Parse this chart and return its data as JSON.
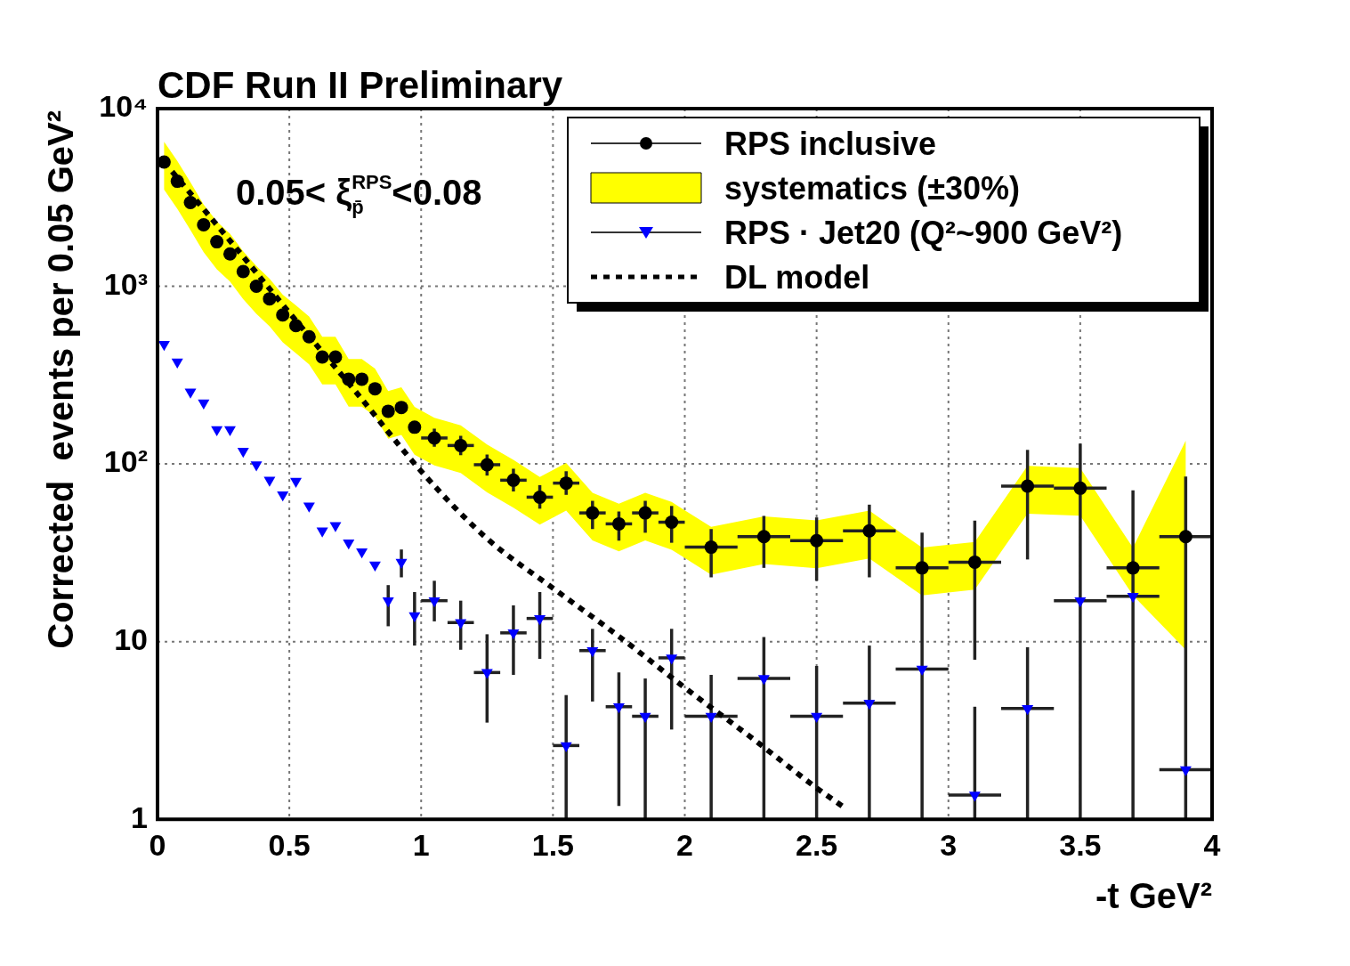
{
  "chart_data": {
    "type": "scatter",
    "title": "CDF Run II Preliminary",
    "xlabel": "-t GeV²",
    "ylabel": "Corrected  events per 0.05 GeV²",
    "annotations": [
      "0.05< ξ$^{RPS}$$_{p̄}$<0.08"
    ],
    "xlim": [
      0,
      4
    ],
    "xticks": [
      0,
      0.5,
      1,
      1.5,
      2,
      2.5,
      3,
      3.5,
      4
    ],
    "ylim": [
      1,
      10000
    ],
    "yticks": [
      1,
      10,
      {
        "value": 100,
        "label": "10²"
      },
      {
        "value": 1000,
        "label": "10³"
      },
      {
        "value": 10000,
        "label": "10⁴"
      }
    ],
    "log": "y",
    "grid": true,
    "legend": "top right",
    "series": [
      {
        "name": "RPS inclusive",
        "type": "scatter",
        "color": "#000000",
        "marker": "circle",
        "x": [
          0.025,
          0.075,
          0.125,
          0.175,
          0.225,
          0.275,
          0.325,
          0.375,
          0.425,
          0.475,
          0.525,
          0.575,
          0.625,
          0.675,
          0.725,
          0.775,
          0.825,
          0.875,
          0.925,
          0.975,
          1.05,
          1.15,
          1.25,
          1.35,
          1.45,
          1.55,
          1.65,
          1.75,
          1.85,
          1.95,
          2.1,
          2.3,
          2.5,
          2.7,
          2.9,
          3.1,
          3.3,
          3.5,
          3.7,
          3.9
        ],
        "values": [
          5000,
          3900,
          2960,
          2220,
          1780,
          1520,
          1210,
          1000,
          850,
          690,
          600,
          520,
          400,
          400,
          300,
          300,
          265,
          198,
          208,
          161,
          140,
          127,
          99,
          81,
          65,
          78,
          53,
          46,
          53,
          47,
          34,
          39,
          37,
          42,
          26,
          28,
          75,
          73,
          26,
          39
        ],
        "errors": [
          null,
          null,
          null,
          null,
          null,
          null,
          null,
          null,
          null,
          null,
          null,
          null,
          null,
          null,
          null,
          null,
          null,
          null,
          null,
          null,
          [
            125,
            158
          ],
          [
            112,
            144
          ],
          [
            86,
            113
          ],
          [
            70,
            94
          ],
          [
            56,
            76
          ],
          [
            67,
            91
          ],
          [
            43,
            62
          ],
          [
            37,
            54
          ],
          [
            41,
            62
          ],
          [
            36,
            58
          ],
          [
            23,
            43
          ],
          [
            26,
            51
          ],
          [
            22,
            50
          ],
          [
            23,
            59
          ],
          [
            1,
            41
          ],
          [
            7.9,
            48
          ],
          [
            29,
            120
          ],
          [
            1,
            130
          ],
          [
            1,
            71
          ],
          [
            1,
            85
          ]
        ],
        "xerrors": [
          null,
          null,
          null,
          null,
          null,
          null,
          null,
          null,
          null,
          null,
          null,
          null,
          null,
          null,
          null,
          null,
          null,
          null,
          null,
          null,
          0.05,
          0.05,
          0.05,
          0.05,
          0.05,
          0.05,
          0.05,
          0.05,
          0.05,
          0.05,
          0.1,
          0.1,
          0.1,
          0.1,
          0.1,
          0.1,
          0.1,
          0.1,
          0.1,
          0.1
        ],
        "lower": [
          3500,
          2730,
          2072,
          1554,
          1246,
          1064,
          847,
          700,
          595,
          483,
          420,
          364,
          280,
          280,
          210,
          210,
          185.5,
          138.6,
          145.6,
          112.7,
          98,
          88.9,
          69.3,
          56.7,
          45.5,
          54.6,
          37.1,
          32.2,
          37.1,
          32.9,
          23.8,
          27.3,
          25.9,
          29.4,
          18.2,
          19.6,
          52.5,
          51.1,
          18.2,
          9
        ],
        "upper": [
          6500,
          5070,
          3848,
          2886,
          2314,
          1976,
          1573,
          1300,
          1105,
          897,
          780,
          676,
          520,
          520,
          390,
          390,
          344.5,
          257.4,
          270.4,
          209.3,
          182,
          165.1,
          128.7,
          105.3,
          84.5,
          101.4,
          68.9,
          59.8,
          68.9,
          61.1,
          44.2,
          50.7,
          48.1,
          54.6,
          33.8,
          36.4,
          97.5,
          94.9,
          33.8,
          135
        ]
      },
      {
        "name": "systematics (±30%)",
        "type": "area",
        "color": "#ffff00"
      },
      {
        "name": "RPS · Jet20 (Q²~900 GeV²)",
        "type": "scatter",
        "color": "#0000ff",
        "marker": "triangle",
        "x": [
          0.025,
          0.075,
          0.125,
          0.175,
          0.225,
          0.275,
          0.325,
          0.375,
          0.425,
          0.475,
          0.525,
          0.575,
          0.625,
          0.675,
          0.725,
          0.775,
          0.825,
          0.875,
          0.925,
          0.975,
          1.05,
          1.15,
          1.25,
          1.35,
          1.45,
          1.55,
          1.65,
          1.75,
          1.85,
          1.95,
          2.1,
          2.3,
          2.5,
          2.7,
          2.9,
          3.1,
          3.3,
          3.5,
          3.7,
          3.9
        ],
        "values": [
          471,
          375,
          254,
          221,
          156,
          156,
          118,
          99,
          81,
          67,
          80,
          58,
          42,
          45,
          36,
          32,
          27,
          17,
          28,
          14,
          17,
          12.8,
          6.7,
          11.2,
          13.5,
          2.6,
          8.9,
          4.3,
          3.8,
          8.1,
          3.8,
          6.2,
          3.8,
          4.5,
          7.0,
          1.37,
          4.2,
          17,
          18,
          1.9
        ],
        "errors": [
          null,
          null,
          null,
          null,
          null,
          null,
          null,
          null,
          null,
          null,
          null,
          null,
          null,
          null,
          null,
          null,
          null,
          [
            12.2,
            20.8
          ],
          [
            23,
            33
          ],
          [
            9.5,
            19
          ],
          [
            13,
            22
          ],
          [
            9,
            17
          ],
          [
            3.5,
            11
          ],
          [
            6.5,
            16
          ],
          [
            8,
            19
          ],
          [
            1,
            5
          ],
          [
            4.6,
            11.8
          ],
          [
            1.19,
            6.7
          ],
          [
            1,
            6.2
          ],
          [
            3.2,
            11.8
          ],
          [
            1,
            6.5
          ],
          [
            1,
            10.6
          ],
          [
            1,
            7.3
          ],
          [
            1,
            9.5
          ],
          null,
          [
            1,
            4.3
          ],
          [
            1,
            9.3
          ],
          null,
          null,
          null
        ],
        "xerrors": [
          null,
          null,
          null,
          null,
          null,
          null,
          null,
          null,
          null,
          null,
          null,
          null,
          null,
          null,
          null,
          null,
          null,
          null,
          null,
          null,
          0.05,
          0.05,
          0.05,
          0.05,
          0.05,
          0.05,
          0.05,
          0.05,
          0.05,
          0.05,
          0.1,
          0.1,
          0.1,
          0.1,
          0.1,
          0.1,
          0.1,
          0.1,
          0.1,
          0.1
        ]
      },
      {
        "name": "DL model",
        "type": "line",
        "color": "#000000",
        "marker": "none",
        "line_style": "dotted",
        "x": [
          0.025,
          0.25,
          0.5,
          0.75,
          1.0,
          1.25,
          1.5,
          1.75,
          2.0,
          2.25,
          2.5,
          2.61
        ],
        "values": [
          5000,
          2000,
          710,
          257,
          91,
          38,
          20,
          10.7,
          5.5,
          2.9,
          1.5,
          1.15
        ]
      }
    ]
  }
}
